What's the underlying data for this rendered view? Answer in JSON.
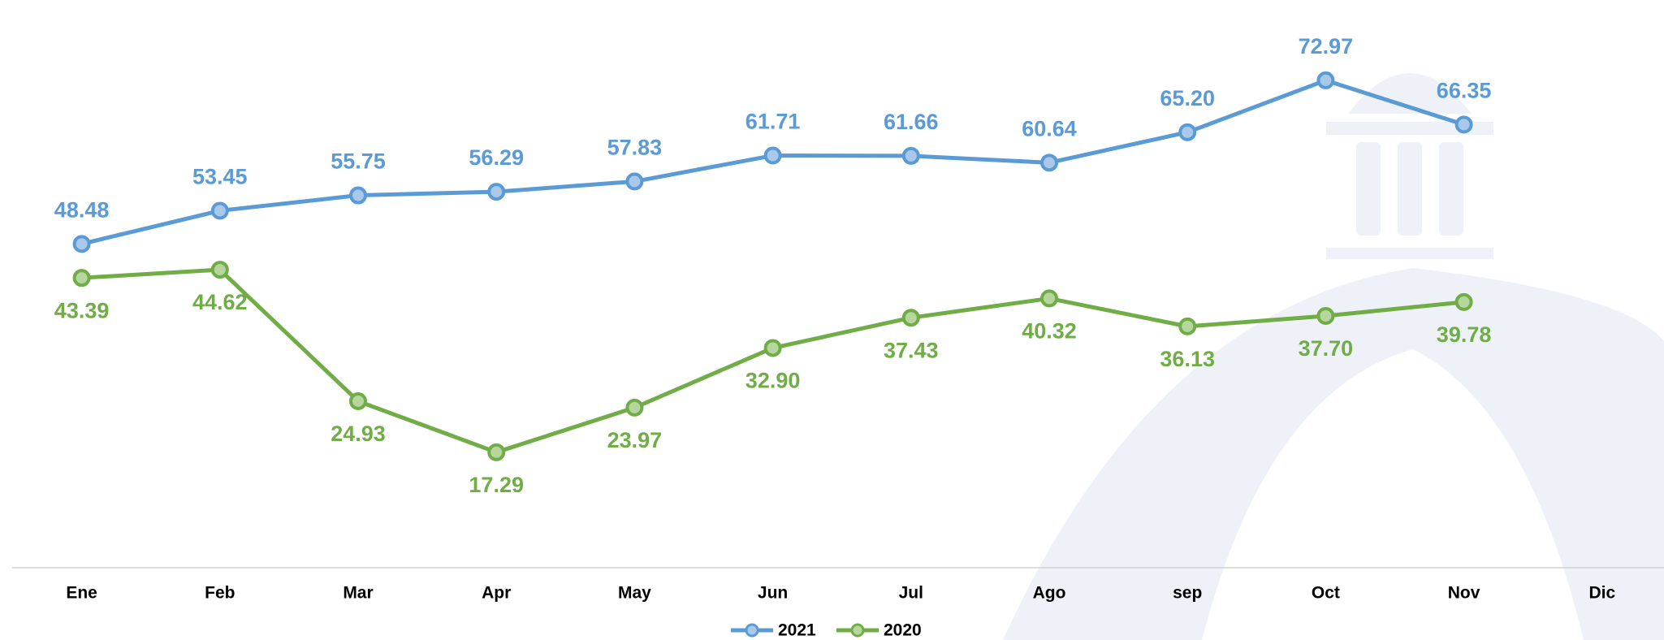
{
  "chart_data": {
    "type": "line",
    "categories": [
      "Ene",
      "Feb",
      "Mar",
      "Apr",
      "May",
      "Jun",
      "Jul",
      "Ago",
      "sep",
      "Oct",
      "Nov",
      "Dic"
    ],
    "series": [
      {
        "name": "2021",
        "color": "#5b9bd5",
        "values": [
          48.48,
          53.45,
          55.75,
          56.29,
          57.83,
          61.71,
          61.66,
          60.64,
          65.2,
          72.97,
          66.35,
          null
        ],
        "value_labels": [
          "48.48",
          "53.45",
          "55.75",
          "56.29",
          "57.83",
          "61.71",
          "61.66",
          "60.64",
          "65.20",
          "72.97",
          "66.35",
          null
        ]
      },
      {
        "name": "2020",
        "color": "#70ad47",
        "values": [
          43.39,
          44.62,
          24.93,
          17.29,
          23.97,
          32.9,
          37.43,
          40.32,
          36.13,
          37.7,
          39.78,
          null
        ],
        "value_labels": [
          "43.39",
          "44.62",
          "24.93",
          "17.29",
          "23.97",
          "32.90",
          "37.43",
          "40.32",
          "36.13",
          "37.70",
          "39.78",
          null
        ]
      }
    ],
    "ylim": [
      0,
      85
    ],
    "legend": "bottom"
  }
}
